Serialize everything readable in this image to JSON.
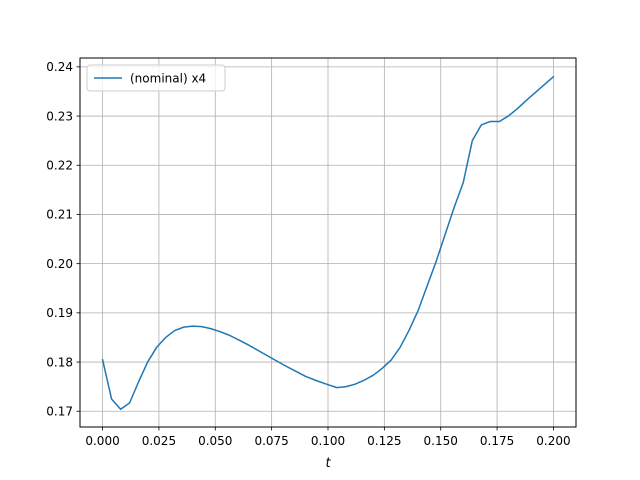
{
  "chart_data": {
    "type": "line",
    "title": "",
    "xlabel": "t",
    "ylabel": "",
    "xlim": [
      -0.01,
      0.21
    ],
    "ylim": [
      0.1668,
      0.2418
    ],
    "grid": true,
    "legend": {
      "placement": "upper-left"
    },
    "xticks": [
      {
        "value": 0.0,
        "label": "0.000"
      },
      {
        "value": 0.025,
        "label": "0.025"
      },
      {
        "value": 0.05,
        "label": "0.050"
      },
      {
        "value": 0.075,
        "label": "0.075"
      },
      {
        "value": 0.1,
        "label": "0.100"
      },
      {
        "value": 0.125,
        "label": "0.125"
      },
      {
        "value": 0.15,
        "label": "0.150"
      },
      {
        "value": 0.175,
        "label": "0.175"
      },
      {
        "value": 0.2,
        "label": "0.200"
      }
    ],
    "yticks": [
      {
        "value": 0.17,
        "label": "0.17"
      },
      {
        "value": 0.18,
        "label": "0.18"
      },
      {
        "value": 0.19,
        "label": "0.19"
      },
      {
        "value": 0.2,
        "label": "0.20"
      },
      {
        "value": 0.21,
        "label": "0.21"
      },
      {
        "value": 0.22,
        "label": "0.22"
      },
      {
        "value": 0.23,
        "label": "0.23"
      },
      {
        "value": 0.24,
        "label": "0.24"
      }
    ],
    "series": [
      {
        "name": "(nominal) x4",
        "color": "#1f77b4",
        "x": [
          0.0,
          0.004,
          0.008,
          0.012,
          0.016,
          0.02,
          0.024,
          0.028,
          0.032,
          0.036,
          0.04,
          0.044,
          0.048,
          0.052,
          0.056,
          0.06,
          0.065,
          0.07,
          0.075,
          0.08,
          0.085,
          0.09,
          0.095,
          0.1,
          0.104,
          0.108,
          0.112,
          0.116,
          0.12,
          0.124,
          0.128,
          0.132,
          0.136,
          0.14,
          0.144,
          0.148,
          0.152,
          0.156,
          0.16,
          0.164,
          0.168,
          0.172,
          0.176,
          0.18,
          0.184,
          0.188,
          0.192,
          0.196,
          0.2
        ],
        "y": [
          0.1805,
          0.1725,
          0.1704,
          0.1717,
          0.176,
          0.18,
          0.183,
          0.185,
          0.1864,
          0.1871,
          0.1873,
          0.1872,
          0.1868,
          0.1862,
          0.1855,
          0.1846,
          0.1834,
          0.1821,
          0.1808,
          0.1795,
          0.1783,
          0.1771,
          0.1762,
          0.1754,
          0.1748,
          0.175,
          0.1755,
          0.1763,
          0.1773,
          0.1787,
          0.1804,
          0.183,
          0.1865,
          0.1905,
          0.1955,
          0.2005,
          0.206,
          0.2115,
          0.2165,
          0.225,
          0.2282,
          0.2289,
          0.2289,
          0.23,
          0.2315,
          0.2332,
          0.2348,
          0.2364,
          0.238
        ]
      }
    ]
  }
}
